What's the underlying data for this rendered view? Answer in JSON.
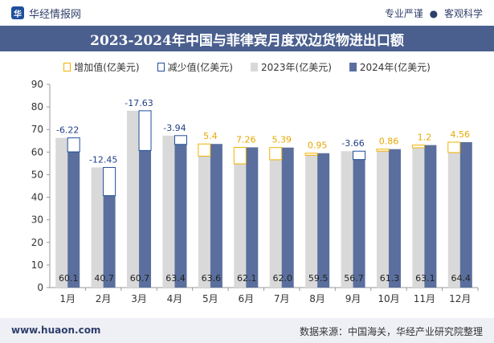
{
  "header": {
    "brand": "华经情报网",
    "logo_glyph": "华",
    "tagline_left": "专业严谨",
    "tagline_sep": "●",
    "tagline_right": "客观科学"
  },
  "colors": {
    "title_bg": "#4a5f8e",
    "bar_2023": "#d9d9d9",
    "bar_2024": "#5a6f9e",
    "increase": "#f2b200",
    "decrease": "#1f4e9c"
  },
  "chart_data": {
    "type": "bar",
    "title": "2023-2024年中国与菲律宾月度双边货物进出口额",
    "categories": [
      "1月",
      "2月",
      "3月",
      "4月",
      "5月",
      "6月",
      "7月",
      "8月",
      "9月",
      "10月",
      "11月",
      "12月"
    ],
    "series": [
      {
        "name": "2023年(亿美元)",
        "values": [
          66.3,
          53.2,
          78.3,
          67.3,
          58.2,
          54.8,
          56.6,
          58.6,
          60.4,
          60.4,
          61.9,
          59.8
        ]
      },
      {
        "name": "2024年(亿美元)",
        "values": [
          60.1,
          40.7,
          60.7,
          63.4,
          63.6,
          62.1,
          62.0,
          59.5,
          56.7,
          61.3,
          63.1,
          64.4
        ]
      }
    ],
    "change": {
      "values": [
        -6.22,
        -12.45,
        -17.63,
        -3.94,
        5.4,
        7.26,
        5.39,
        0.95,
        -3.66,
        0.86,
        1.2,
        4.56
      ],
      "labels": [
        "-6.22",
        "-12.45",
        "-17.63",
        "-3.94",
        "5.4",
        "7.26",
        "5.39",
        "0.95",
        "-3.66",
        "0.86",
        "1.2",
        "4.56"
      ]
    },
    "value_labels_2024": [
      "60.1",
      "40.7",
      "60.7",
      "63.4",
      "63.6",
      "62.1",
      "62.0",
      "59.5",
      "56.7",
      "61.3",
      "63.1",
      "64.4"
    ],
    "legend": {
      "increase": "增加值(亿美元)",
      "decrease": "减少值(亿美元)",
      "y2023": "2023年(亿美元)",
      "y2024": "2024年(亿美元)"
    },
    "ylim": [
      0,
      90
    ],
    "yticks": [
      0,
      10,
      20,
      30,
      40,
      50,
      60,
      70,
      80,
      90
    ],
    "grid": false,
    "legend_position": "top"
  },
  "footer": {
    "site": "www.huaon.com",
    "source": "数据来源：中国海关，华经产业研究院整理"
  }
}
